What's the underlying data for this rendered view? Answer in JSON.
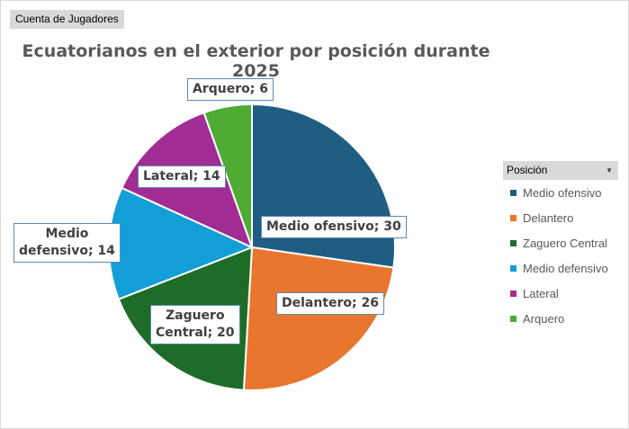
{
  "field_button": "Cuenta de Jugadores",
  "legend": {
    "header": "Posición"
  },
  "chart_data": {
    "type": "pie",
    "title": "Ecuatorianos en el exterior por posición durante 2025",
    "slices": [
      {
        "name": "Medio ofensivo",
        "value": 30,
        "color": "#1f5e82",
        "label": "Medio ofensivo; 30"
      },
      {
        "name": "Delantero",
        "value": 26,
        "color": "#e9762f",
        "label": "Delantero; 26"
      },
      {
        "name": "Zaguero Central",
        "value": 20,
        "color": "#1e6c27",
        "label": "Zaguero Central; 20"
      },
      {
        "name": "Medio defensivo",
        "value": 14,
        "color": "#139ed8",
        "label": "Medio defensivo; 14"
      },
      {
        "name": "Lateral",
        "value": 14,
        "color": "#a02c94",
        "label": "Lateral; 14"
      },
      {
        "name": "Arquero",
        "value": 6,
        "color": "#4eac35",
        "label": "Arquero; 6"
      }
    ],
    "legend_position": "right"
  }
}
